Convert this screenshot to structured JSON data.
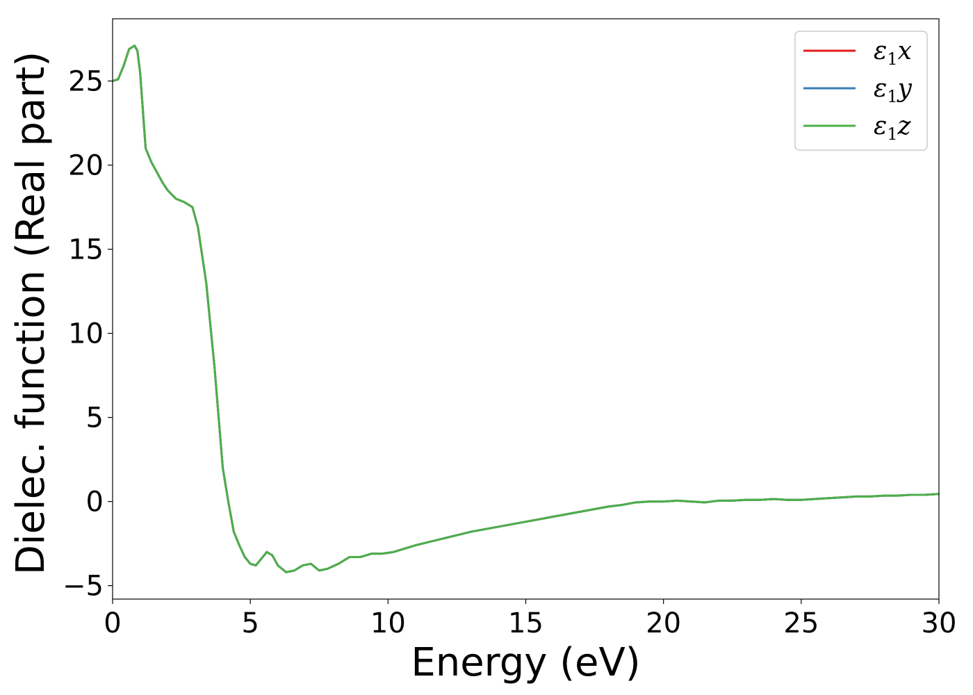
{
  "chart_data": {
    "type": "line",
    "xlabel": "Energy (eV)",
    "ylabel": "Dielec. function (Real part)",
    "xlim": [
      0,
      30
    ],
    "ylim": [
      -5.8,
      28.7
    ],
    "xticks": [
      0,
      5,
      10,
      15,
      20,
      25,
      30
    ],
    "yticks": [
      -5,
      0,
      5,
      10,
      15,
      20,
      25
    ],
    "ytick_labels": [
      "−5",
      "0",
      "5",
      "10",
      "15",
      "20",
      "25"
    ],
    "grid": false,
    "legend_position": "top-right",
    "legend": [
      {
        "base": "ε",
        "sub": "1",
        "comp": "x",
        "color": "#e41a1c"
      },
      {
        "base": "ε",
        "sub": "1",
        "comp": "y",
        "color": "#377eb8"
      },
      {
        "base": "ε",
        "sub": "1",
        "comp": "z",
        "color": "#4daf4a"
      }
    ],
    "x": [
      0,
      0.2,
      0.4,
      0.6,
      0.8,
      0.9,
      1.0,
      1.2,
      1.4,
      1.6,
      1.8,
      2.0,
      2.3,
      2.6,
      2.9,
      3.1,
      3.4,
      3.7,
      4.0,
      4.2,
      4.4,
      4.6,
      4.8,
      5.0,
      5.2,
      5.4,
      5.6,
      5.8,
      6.0,
      6.3,
      6.6,
      6.9,
      7.2,
      7.5,
      7.8,
      8.2,
      8.6,
      9.0,
      9.4,
      9.8,
      10.2,
      10.6,
      11.0,
      11.5,
      12.0,
      12.5,
      13.0,
      13.5,
      14.0,
      14.5,
      15.0,
      15.5,
      16.0,
      16.5,
      17.0,
      17.5,
      18.0,
      18.5,
      19.0,
      19.5,
      20.0,
      20.5,
      21.0,
      21.5,
      22.0,
      22.5,
      23.0,
      23.5,
      24.0,
      24.5,
      25.0,
      25.5,
      26.0,
      26.5,
      27.0,
      27.5,
      28.0,
      28.5,
      29.0,
      29.5,
      30.0
    ],
    "series": [
      {
        "values": [
          25.0,
          25.1,
          25.9,
          26.9,
          27.1,
          26.8,
          25.5,
          21.0,
          20.2,
          19.6,
          19.0,
          18.5,
          18.0,
          17.8,
          17.5,
          16.3,
          13.0,
          8.0,
          2.0,
          0.0,
          -1.8,
          -2.6,
          -3.3,
          -3.7,
          -3.8,
          -3.4,
          -3.0,
          -3.2,
          -3.8,
          -4.2,
          -4.1,
          -3.8,
          -3.7,
          -4.1,
          -4.0,
          -3.7,
          -3.3,
          -3.3,
          -3.1,
          -3.1,
          -3.0,
          -2.8,
          -2.6,
          -2.4,
          -2.2,
          -2.0,
          -1.8,
          -1.65,
          -1.5,
          -1.35,
          -1.2,
          -1.05,
          -0.9,
          -0.75,
          -0.6,
          -0.45,
          -0.3,
          -0.2,
          -0.05,
          0.0,
          0.0,
          0.05,
          0.0,
          -0.05,
          0.05,
          0.05,
          0.1,
          0.1,
          0.15,
          0.1,
          0.1,
          0.15,
          0.2,
          0.25,
          0.3,
          0.3,
          0.35,
          0.35,
          0.4,
          0.4,
          0.45
        ]
      },
      {
        "values": [
          25.0,
          25.1,
          25.9,
          26.9,
          27.1,
          26.8,
          25.5,
          21.0,
          20.2,
          19.6,
          19.0,
          18.5,
          18.0,
          17.8,
          17.5,
          16.3,
          13.0,
          8.0,
          2.0,
          0.0,
          -1.8,
          -2.6,
          -3.3,
          -3.7,
          -3.8,
          -3.4,
          -3.0,
          -3.2,
          -3.8,
          -4.2,
          -4.1,
          -3.8,
          -3.7,
          -4.1,
          -4.0,
          -3.7,
          -3.3,
          -3.3,
          -3.1,
          -3.1,
          -3.0,
          -2.8,
          -2.6,
          -2.4,
          -2.2,
          -2.0,
          -1.8,
          -1.65,
          -1.5,
          -1.35,
          -1.2,
          -1.05,
          -0.9,
          -0.75,
          -0.6,
          -0.45,
          -0.3,
          -0.2,
          -0.05,
          0.0,
          0.0,
          0.05,
          0.0,
          -0.05,
          0.05,
          0.05,
          0.1,
          0.1,
          0.15,
          0.1,
          0.1,
          0.15,
          0.2,
          0.25,
          0.3,
          0.3,
          0.35,
          0.35,
          0.4,
          0.4,
          0.45
        ]
      },
      {
        "values": [
          25.0,
          25.1,
          25.9,
          26.9,
          27.1,
          26.8,
          25.5,
          21.0,
          20.2,
          19.6,
          19.0,
          18.5,
          18.0,
          17.8,
          17.5,
          16.3,
          13.0,
          8.0,
          2.0,
          0.0,
          -1.8,
          -2.6,
          -3.3,
          -3.7,
          -3.8,
          -3.4,
          -3.0,
          -3.2,
          -3.8,
          -4.2,
          -4.1,
          -3.8,
          -3.7,
          -4.1,
          -4.0,
          -3.7,
          -3.3,
          -3.3,
          -3.1,
          -3.1,
          -3.0,
          -2.8,
          -2.6,
          -2.4,
          -2.2,
          -2.0,
          -1.8,
          -1.65,
          -1.5,
          -1.35,
          -1.2,
          -1.05,
          -0.9,
          -0.75,
          -0.6,
          -0.45,
          -0.3,
          -0.2,
          -0.05,
          0.0,
          0.0,
          0.05,
          0.0,
          -0.05,
          0.05,
          0.05,
          0.1,
          0.1,
          0.15,
          0.1,
          0.1,
          0.15,
          0.2,
          0.25,
          0.3,
          0.3,
          0.35,
          0.35,
          0.4,
          0.4,
          0.45
        ]
      }
    ]
  }
}
